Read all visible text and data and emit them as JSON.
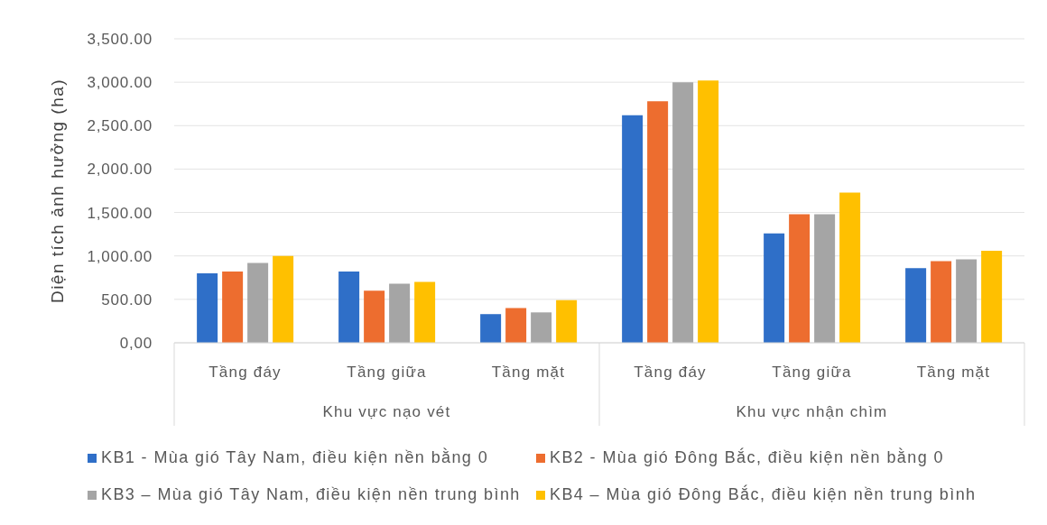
{
  "chart_data": {
    "type": "bar",
    "ylabel": "Diện tích ảnh hưởng (ha)",
    "categories": [
      "Tầng đáy",
      "Tầng giữa",
      "Tầng mặt",
      "Tầng đáy",
      "Tầng giữa",
      "Tầng mặt"
    ],
    "annotations": [
      "Khu vực nạo vét",
      "Khu vực nhận chìm"
    ],
    "series": [
      {
        "name": "KB1 - Mùa gió Tây Nam, điều kiện nền bằng 0",
        "color": "#2f6fc8",
        "values": [
          800,
          820,
          330,
          2620,
          1260,
          860
        ]
      },
      {
        "name": "KB2 - Mùa gió Đông Bắc, điều kiện nền bằng 0",
        "color": "#ed6d2f",
        "values": [
          820,
          600,
          400,
          2780,
          1480,
          940
        ]
      },
      {
        "name": "KB3 – Mùa gió Tây Nam, điều kiện nền trung bình",
        "color": "#a5a5a5",
        "values": [
          920,
          680,
          350,
          3000,
          1480,
          960
        ]
      },
      {
        "name": "KB4 – Mùa gió Đông Bắc, điều kiện nền trung bình",
        "color": "#ffc000",
        "values": [
          1000,
          700,
          490,
          3020,
          1730,
          1060
        ]
      }
    ],
    "ylim": [
      0,
      3500
    ],
    "yticks": [
      {
        "value": 0,
        "label": "0,00"
      },
      {
        "value": 500,
        "label": "500.00"
      },
      {
        "value": 1000,
        "label": "1,000.00"
      },
      {
        "value": 1500,
        "label": "1,500.00"
      },
      {
        "value": 2000,
        "label": "2,000.00"
      },
      {
        "value": 2500,
        "label": "2,500.00"
      },
      {
        "value": 3000,
        "label": "3,000.00"
      },
      {
        "value": 3500,
        "label": "3,500.00"
      }
    ],
    "grid": "y",
    "legend": "bottom"
  }
}
